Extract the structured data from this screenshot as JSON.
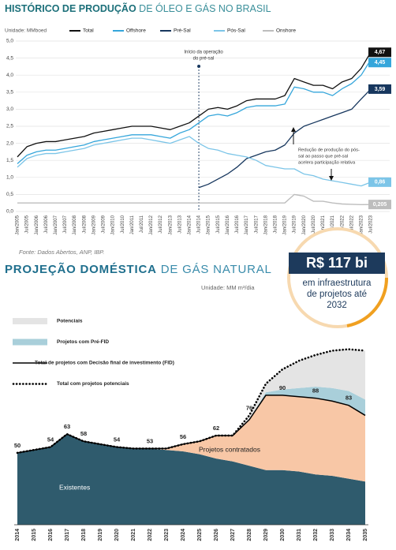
{
  "chart_data": [
    {
      "type": "line",
      "title_bold": "HISTÓRICO DE PRODUÇÃO",
      "title_light": "DE ÓLEO E GÁS NO BRASIL",
      "unit": "Unidade: MMboed",
      "source": "Fonte: Dados Abertos, ANP, IBP.",
      "annotations": [
        {
          "lines": [
            "Início da operação",
            "do pré-sal"
          ]
        },
        {
          "lines": [
            "Redução de produção do pós-",
            "sal ao passo que pré-sal",
            "acelera participação relativa"
          ]
        }
      ],
      "categories": [
        "Jan/2005",
        "Jul/2005",
        "Jan/2006",
        "Jul/2006",
        "Jan/2007",
        "Jul/2007",
        "Jan/2008",
        "Jul/2008",
        "Jan/2009",
        "Jul/2009",
        "Jan/2010",
        "Jul/2010",
        "Jan/2011",
        "Jul/2011",
        "Jan/2012",
        "Jul/2012",
        "Jan/2013",
        "Jul/2013",
        "Jan/2014",
        "Jul/2014",
        "Jan/2015",
        "Jul/2015",
        "Jan/2016",
        "Jul/2016",
        "Jan/2017",
        "Jul/2017",
        "Jan/2018",
        "Jul/2018",
        "Jan/2019",
        "Jul/2019",
        "Jan/2020",
        "Jul/2020",
        "Jan/2021",
        "Jul/2021",
        "Jan/2022",
        "Jul/2022",
        "Jan/2023",
        "Jul/2023"
      ],
      "series": [
        {
          "name": "Total",
          "color": "#111111",
          "values": [
            1.6,
            1.9,
            2.0,
            2.05,
            2.05,
            2.1,
            2.15,
            2.2,
            2.3,
            2.35,
            2.4,
            2.45,
            2.5,
            2.5,
            2.5,
            2.45,
            2.4,
            2.5,
            2.6,
            2.8,
            3.0,
            3.05,
            3.0,
            3.1,
            3.25,
            3.3,
            3.3,
            3.3,
            3.4,
            3.9,
            3.8,
            3.7,
            3.7,
            3.6,
            3.8,
            3.9,
            4.2,
            4.67
          ],
          "value_labels": [
            null,
            null,
            null,
            null,
            null,
            null,
            null,
            null,
            null,
            null,
            null,
            null,
            null,
            null,
            null,
            null,
            null,
            null,
            null,
            null,
            null,
            null,
            null,
            null,
            null,
            null,
            null,
            null,
            null,
            null,
            null,
            null,
            null,
            null,
            null,
            null,
            null,
            "4,67"
          ]
        },
        {
          "name": "Offshore",
          "color": "#35a6db",
          "values": [
            1.4,
            1.65,
            1.75,
            1.8,
            1.8,
            1.85,
            1.9,
            1.95,
            2.05,
            2.1,
            2.15,
            2.2,
            2.25,
            2.25,
            2.25,
            2.2,
            2.15,
            2.3,
            2.4,
            2.6,
            2.8,
            2.85,
            2.8,
            2.9,
            3.05,
            3.1,
            3.1,
            3.1,
            3.15,
            3.65,
            3.6,
            3.5,
            3.5,
            3.4,
            3.6,
            3.75,
            4.0,
            4.45
          ],
          "value_labels": [
            null,
            null,
            null,
            null,
            null,
            null,
            null,
            null,
            null,
            null,
            null,
            null,
            null,
            null,
            null,
            null,
            null,
            null,
            null,
            null,
            null,
            null,
            null,
            null,
            null,
            null,
            null,
            null,
            null,
            null,
            null,
            null,
            null,
            null,
            null,
            null,
            null,
            "4,45"
          ]
        },
        {
          "name": "Pré-Sal",
          "color": "#17375e",
          "values": [
            null,
            null,
            null,
            null,
            null,
            null,
            null,
            null,
            null,
            null,
            null,
            null,
            null,
            null,
            null,
            null,
            null,
            null,
            null,
            0.7,
            0.8,
            0.95,
            1.1,
            1.3,
            1.55,
            1.65,
            1.75,
            1.8,
            1.95,
            2.3,
            2.5,
            2.6,
            2.7,
            2.8,
            2.9,
            3.0,
            3.3,
            3.59
          ],
          "value_labels": [
            null,
            null,
            null,
            null,
            null,
            null,
            null,
            null,
            null,
            null,
            null,
            null,
            null,
            null,
            null,
            null,
            null,
            null,
            null,
            null,
            null,
            null,
            null,
            null,
            null,
            null,
            null,
            null,
            null,
            null,
            null,
            null,
            null,
            null,
            null,
            null,
            null,
            "3,59"
          ]
        },
        {
          "name": "Pós-Sal",
          "color": "#7cc5e8",
          "values": [
            1.3,
            1.55,
            1.65,
            1.7,
            1.7,
            1.75,
            1.8,
            1.85,
            1.95,
            2.0,
            2.05,
            2.1,
            2.15,
            2.15,
            2.1,
            2.05,
            2.0,
            2.1,
            2.2,
            2.0,
            1.85,
            1.8,
            1.7,
            1.65,
            1.6,
            1.5,
            1.35,
            1.3,
            1.25,
            1.25,
            1.1,
            1.05,
            0.95,
            0.9,
            0.85,
            0.8,
            0.75,
            0.86
          ],
          "value_labels": [
            null,
            null,
            null,
            null,
            null,
            null,
            null,
            null,
            null,
            null,
            null,
            null,
            null,
            null,
            null,
            null,
            null,
            null,
            null,
            null,
            null,
            null,
            null,
            null,
            null,
            null,
            null,
            null,
            null,
            null,
            null,
            null,
            null,
            null,
            null,
            null,
            null,
            "0,86"
          ]
        },
        {
          "name": "Onshore",
          "color": "#bdbdbd",
          "values": [
            0.25,
            0.25,
            0.25,
            0.25,
            0.25,
            0.25,
            0.25,
            0.25,
            0.25,
            0.25,
            0.25,
            0.25,
            0.25,
            0.25,
            0.25,
            0.25,
            0.25,
            0.25,
            0.25,
            0.25,
            0.25,
            0.25,
            0.25,
            0.25,
            0.25,
            0.25,
            0.25,
            0.25,
            0.25,
            0.5,
            0.45,
            0.3,
            0.3,
            0.25,
            0.22,
            0.21,
            0.2,
            0.205
          ],
          "value_labels": [
            null,
            null,
            null,
            null,
            null,
            null,
            null,
            null,
            null,
            null,
            null,
            null,
            null,
            null,
            null,
            null,
            null,
            null,
            null,
            null,
            null,
            null,
            null,
            null,
            null,
            null,
            null,
            null,
            null,
            null,
            null,
            null,
            null,
            null,
            null,
            null,
            null,
            "0,205"
          ]
        }
      ],
      "ylim": [
        0,
        5
      ],
      "yticks": [
        {
          "value": 0,
          "label": "0,0"
        },
        {
          "value": 0.5,
          "label": "0,5"
        },
        {
          "value": 1,
          "label": "1,0"
        },
        {
          "value": 1.5,
          "label": "1,5"
        },
        {
          "value": 2,
          "label": "2,0"
        },
        {
          "value": 2.5,
          "label": "2,5"
        },
        {
          "value": 3,
          "label": "3,0"
        },
        {
          "value": 3.5,
          "label": "3,5"
        },
        {
          "value": 4,
          "label": "4,0"
        },
        {
          "value": 4.5,
          "label": "4,5"
        },
        {
          "value": 5,
          "label": "5,0"
        }
      ],
      "grid": true
    },
    {
      "type": "area",
      "title_bold": "PROJEÇÃO DOMÉSTICA",
      "title_light": "DE GÁS NATURAL",
      "unit": "Unidade: MM m³/dia",
      "callout_headline": "R$ 117 bi",
      "callout_lines": [
        "em infraestrutura",
        "de projetos até",
        "2032"
      ],
      "categories": [
        "2014",
        "2015",
        "2016",
        "2017",
        "2018",
        "2019",
        "2020",
        "2021",
        "2022",
        "2023",
        "2024",
        "2025",
        "2026",
        "2027",
        "2028",
        "2029",
        "2030",
        "2031",
        "2032",
        "2033",
        "2034",
        "2035"
      ],
      "stacked": true,
      "ylim": [
        0,
        130
      ],
      "series": [
        {
          "name": "Existentes",
          "kind": "area",
          "legend": false,
          "color": "#2f5b6d",
          "values": [
            50,
            52,
            54,
            63,
            58,
            56,
            54,
            53,
            53,
            52,
            51,
            49,
            46,
            44,
            41,
            38,
            38,
            37,
            35,
            34,
            32,
            30
          ]
        },
        {
          "name": "Projetos contratados",
          "kind": "area",
          "legend": false,
          "color": "#f8c7a6",
          "values": [
            0,
            0,
            0,
            0,
            0,
            0,
            0,
            0,
            0,
            1,
            5,
            9,
            16,
            18,
            32,
            52,
            52,
            52,
            53,
            52,
            51,
            46
          ]
        },
        {
          "name": "Projetos com Pré-FID",
          "kind": "area",
          "legend": true,
          "color": "#a9cfda",
          "values": [
            0,
            0,
            0,
            0,
            0,
            0,
            0,
            0,
            0,
            0,
            0,
            0,
            0,
            0,
            0,
            2,
            4,
            6,
            8,
            9,
            10,
            11
          ]
        },
        {
          "name": "Potenciais",
          "kind": "area",
          "legend": true,
          "color": "#e4e4e4",
          "values": [
            0,
            0,
            0,
            0,
            0,
            0,
            0,
            0,
            0,
            0,
            0,
            0,
            0,
            0,
            3,
            6,
            14,
            19,
            22,
            26,
            29,
            34
          ]
        },
        {
          "name": "Total de projetos com Decisão final de investimento (FID)",
          "kind": "line",
          "legend": true,
          "color": "#000000",
          "dash": "solid",
          "values": [
            50,
            52,
            54,
            63,
            58,
            56,
            54,
            53,
            53,
            53,
            56,
            58,
            62,
            62,
            73,
            90,
            90,
            89,
            88,
            86,
            83,
            76
          ],
          "value_labels": [
            null,
            null,
            null,
            null,
            null,
            null,
            null,
            null,
            null,
            null,
            null,
            null,
            null,
            null,
            null,
            null,
            "90",
            null,
            "88",
            null,
            "83",
            null
          ]
        },
        {
          "name": "Total com projetos potenciais",
          "kind": "line",
          "legend": true,
          "color": "#000000",
          "dash": "dotted",
          "values": [
            50,
            52,
            54,
            63,
            58,
            56,
            54,
            53,
            53,
            53,
            56,
            58,
            62,
            62,
            76,
            98,
            108,
            114,
            118,
            121,
            122,
            121
          ],
          "value_labels": [
            "50",
            null,
            "54",
            "63",
            "58",
            null,
            "54",
            null,
            "53",
            null,
            "56",
            null,
            "62",
            null,
            "76",
            null,
            null,
            null,
            null,
            null,
            null,
            null
          ]
        }
      ]
    }
  ]
}
